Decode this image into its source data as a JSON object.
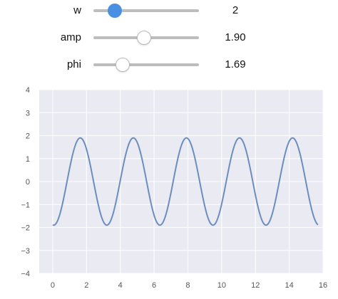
{
  "controls": [
    {
      "id": "w",
      "label": "w",
      "value_text": "2",
      "fraction": 0.2,
      "active": true
    },
    {
      "id": "amp",
      "label": "amp",
      "value_text": "1.90",
      "fraction": 0.48,
      "active": false
    },
    {
      "id": "phi",
      "label": "phi",
      "value_text": "1.69",
      "fraction": 0.28,
      "active": false
    }
  ],
  "chart_data": {
    "type": "line",
    "title": "",
    "xlabel": "",
    "ylabel": "",
    "xlim": [
      -0.8,
      16.0
    ],
    "ylim": [
      -4,
      4
    ],
    "xticks": [
      0,
      2,
      4,
      6,
      8,
      10,
      12,
      14,
      16
    ],
    "yticks": [
      -4,
      -3,
      -2,
      -1,
      0,
      1,
      2,
      3,
      4
    ],
    "grid": true,
    "background": "#eaeaf2",
    "line_color": "#6c8ebf",
    "series": [
      {
        "function": "y = amp * sin(w * x - phi)",
        "w": 2,
        "amp": 1.9,
        "phi": 1.69,
        "x_range": [
          0,
          15.7
        ]
      }
    ]
  }
}
